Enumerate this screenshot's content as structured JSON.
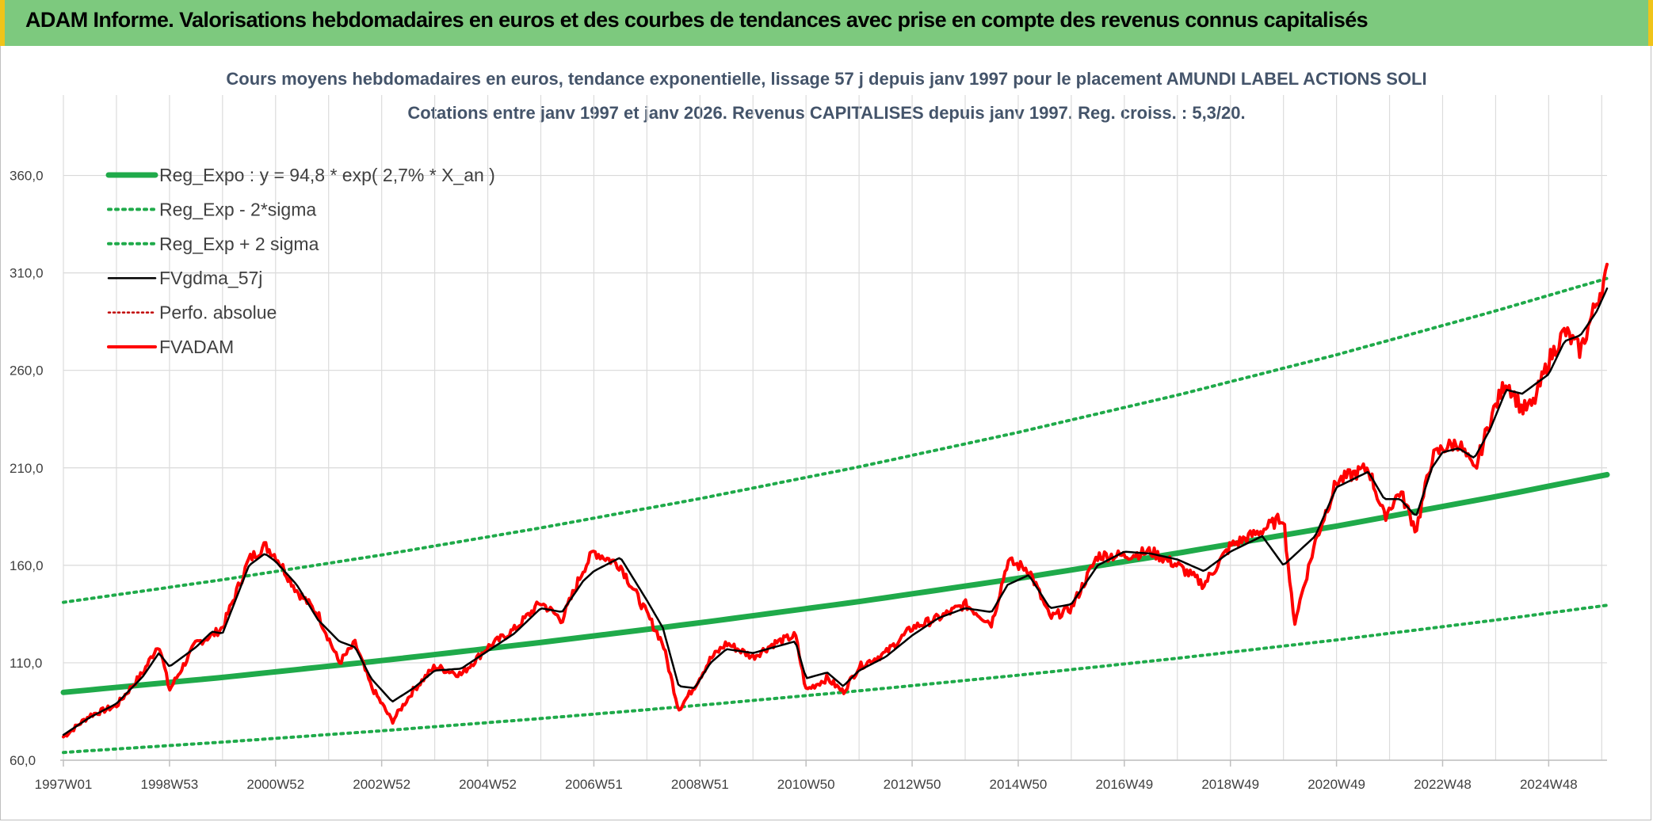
{
  "header": {
    "title": "ADAM Informe. Valorisations hebdomadaires en euros et des courbes de tendances avec prise en compte des revenus connus capitalisés"
  },
  "colors": {
    "banner": "#7dc97e",
    "banner_accent": "#f0c419",
    "regression": "#1faa4a",
    "sigma": "#1faa4a",
    "smoothing": "#000000",
    "perf": "#c00000",
    "price": "#ff0000"
  },
  "chart_data": {
    "type": "line",
    "title": "Cours moyens hebdomadaires en euros, tendance exponentielle, lissage 57 j depuis janv 1997 pour le placement AMUNDI LABEL ACTIONS SOLI",
    "subtitle": "Cotations entre janv 1997 et janv 2026. Revenus CAPITALISES depuis janv 1997. Reg. croiss. : 5,3/20.",
    "xlabel": "",
    "ylabel": "",
    "x_range": [
      1997.0,
      2026.1
    ],
    "ylim": [
      60,
      385
    ],
    "y_ticks": [
      60,
      110,
      160,
      210,
      260,
      310,
      360
    ],
    "y_tick_labels": [
      "60,0",
      "110,0",
      "160,0",
      "210,0",
      "260,0",
      "310,0",
      "360,0"
    ],
    "x_tick_years": [
      1997.0,
      1999.0,
      2001.0,
      2003.0,
      2005.0,
      2007.0,
      2009.0,
      2011.0,
      2013.0,
      2015.0,
      2017.0,
      2019.0,
      2021.0,
      2023.0,
      2025.0
    ],
    "x_tick_labels": [
      "1997W01",
      "1998W53",
      "2000W52",
      "2002W52",
      "2004W52",
      "2006W51",
      "2008W51",
      "2010W50",
      "2012W50",
      "2014W50",
      "2016W49",
      "2018W49",
      "2020W49",
      "2022W48",
      "2024W48"
    ],
    "legend_position": "top-left",
    "series": [
      {
        "name": "Reg_Expo : y = 94,8 * exp( 2,7% *  X_an )",
        "style": "thick-solid",
        "x": [
          1997,
          2000,
          2003,
          2006,
          2009,
          2012,
          2015,
          2018,
          2021,
          2024,
          2026.1
        ],
        "values": [
          94.8,
          102.5,
          111.1,
          120.4,
          130.5,
          141.4,
          153.3,
          166.2,
          180.1,
          195.2,
          206.5
        ]
      },
      {
        "name": "Reg_Exp - 2*sigma",
        "style": "dotted",
        "x": [
          1997,
          2000,
          2003,
          2006,
          2009,
          2012,
          2015,
          2018,
          2021,
          2024,
          2026.1
        ],
        "values": [
          64.0,
          69.3,
          75.1,
          81.4,
          88.2,
          95.6,
          103.6,
          112.3,
          121.7,
          131.9,
          139.5
        ]
      },
      {
        "name": "Reg_Exp + 2 sigma",
        "style": "dotted",
        "x": [
          1997,
          2000,
          2003,
          2006,
          2009,
          2012,
          2015,
          2018,
          2021,
          2024,
          2026.1
        ],
        "values": [
          141.0,
          152.6,
          165.3,
          179.2,
          194.2,
          210.5,
          228.2,
          247.3,
          268.0,
          290.5,
          307.2
        ]
      },
      {
        "name": "FVgdma_57j",
        "style": "thin-solid",
        "x": [
          1997.0,
          1997.5,
          1998.0,
          1998.5,
          1998.8,
          1999.0,
          1999.5,
          1999.8,
          2000.0,
          2000.5,
          2000.8,
          2001.0,
          2001.4,
          2001.8,
          2002.2,
          2002.5,
          2002.8,
          2003.2,
          2003.6,
          2004.0,
          2004.5,
          2005.0,
          2005.5,
          2006.0,
          2006.4,
          2006.8,
          2007.0,
          2007.5,
          2008.0,
          2008.3,
          2008.6,
          2008.9,
          2009.2,
          2009.5,
          2010.0,
          2010.4,
          2010.8,
          2011.0,
          2011.4,
          2011.7,
          2012.0,
          2012.5,
          2013.0,
          2013.5,
          2014.0,
          2014.5,
          2014.8,
          2015.2,
          2015.6,
          2016.0,
          2016.5,
          2017.0,
          2017.5,
          2018.0,
          2018.5,
          2019.0,
          2019.6,
          2020.0,
          2020.2,
          2020.6,
          2021.0,
          2021.6,
          2021.9,
          2022.2,
          2022.5,
          2022.8,
          2023.0,
          2023.3,
          2023.6,
          2023.9,
          2024.2,
          2024.5,
          2024.7,
          2025.0,
          2025.3,
          2025.6,
          2025.9,
          2026.1
        ],
        "values": [
          73,
          82,
          89,
          103,
          115,
          108,
          118,
          126,
          125,
          160,
          166,
          162,
          150,
          132,
          121,
          118,
          102,
          90,
          97,
          106,
          107,
          116,
          125,
          138,
          136,
          152,
          157,
          164,
          142,
          128,
          98,
          97,
          110,
          117,
          115,
          118,
          121,
          102,
          105,
          98,
          106,
          113,
          124,
          133,
          138,
          136,
          150,
          155,
          138,
          140,
          160,
          167,
          166,
          163,
          157,
          167,
          175,
          160,
          165,
          175,
          200,
          208,
          194,
          194,
          185,
          210,
          218,
          220,
          215,
          230,
          250,
          248,
          252,
          258,
          275,
          278,
          290,
          302
        ]
      },
      {
        "name": "Perfo. absolue",
        "style": "dotted",
        "x": [],
        "values": []
      },
      {
        "name": "FVADAM",
        "style": "thick-solid",
        "x": [
          1997.0,
          1997.5,
          1998.0,
          1998.5,
          1998.8,
          1999.0,
          1999.5,
          1999.8,
          2000.0,
          2000.5,
          2000.8,
          2001.0,
          2001.4,
          2001.8,
          2002.2,
          2002.5,
          2002.8,
          2003.2,
          2003.6,
          2004.0,
          2004.5,
          2005.0,
          2005.5,
          2006.0,
          2006.4,
          2006.8,
          2007.0,
          2007.5,
          2008.0,
          2008.3,
          2008.6,
          2008.9,
          2009.2,
          2009.5,
          2010.0,
          2010.4,
          2010.8,
          2011.0,
          2011.4,
          2011.7,
          2012.0,
          2012.5,
          2013.0,
          2013.5,
          2014.0,
          2014.5,
          2014.8,
          2015.2,
          2015.6,
          2016.0,
          2016.5,
          2017.0,
          2017.5,
          2018.0,
          2018.5,
          2019.0,
          2019.6,
          2020.0,
          2020.2,
          2020.6,
          2021.0,
          2021.6,
          2021.9,
          2022.2,
          2022.5,
          2022.8,
          2023.0,
          2023.3,
          2023.6,
          2023.9,
          2024.2,
          2024.5,
          2024.7,
          2025.0,
          2025.3,
          2025.6,
          2025.9,
          2026.1
        ],
        "values": [
          72,
          83,
          88,
          105,
          120,
          96,
          120,
          124,
          128,
          163,
          170,
          165,
          147,
          135,
          110,
          120,
          98,
          80,
          96,
          108,
          104,
          118,
          127,
          141,
          132,
          158,
          167,
          160,
          135,
          120,
          86,
          98,
          112,
          120,
          113,
          120,
          124,
          96,
          102,
          95,
          108,
          115,
          128,
          133,
          140,
          130,
          162,
          158,
          133,
          138,
          165,
          165,
          167,
          160,
          150,
          170,
          178,
          185,
          130,
          172,
          203,
          210,
          185,
          198,
          178,
          215,
          220,
          223,
          208,
          235,
          255,
          240,
          242,
          265,
          280,
          270,
          295,
          310
        ]
      }
    ]
  }
}
